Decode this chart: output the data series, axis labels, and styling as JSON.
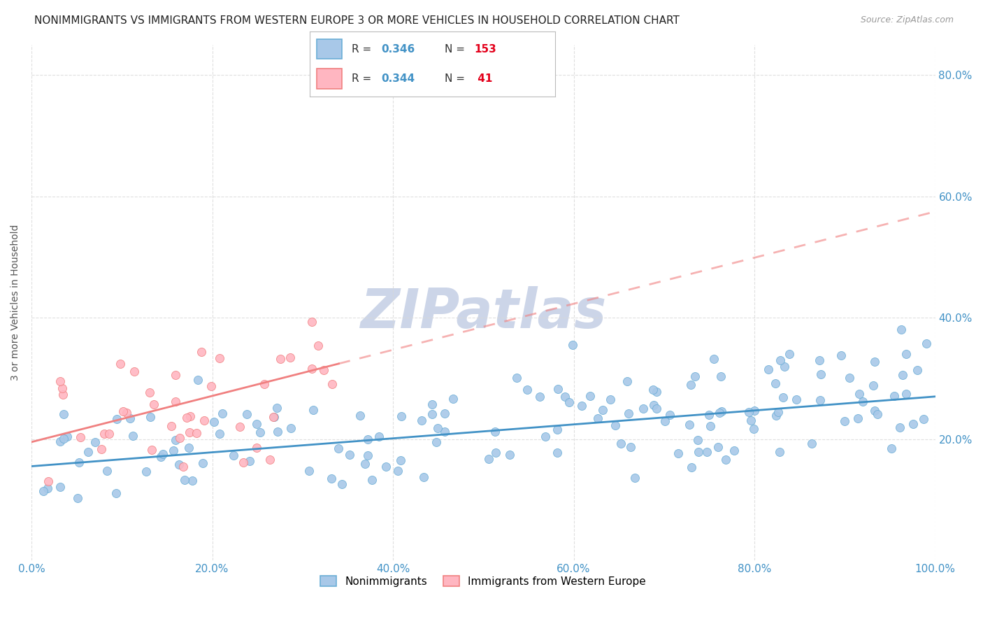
{
  "title": "NONIMMIGRANTS VS IMMIGRANTS FROM WESTERN EUROPE 3 OR MORE VEHICLES IN HOUSEHOLD CORRELATION CHART",
  "source": "Source: ZipAtlas.com",
  "ylabel": "3 or more Vehicles in Household",
  "background_color": "#ffffff",
  "watermark": "ZIPatlas",
  "series": [
    {
      "name": "Nonimmigrants",
      "R": 0.346,
      "N": 153,
      "dot_color": "#a8c8e8",
      "edge_color": "#6baed6",
      "line_color": "#4292c6",
      "intercept": 0.155,
      "slope": 0.115
    },
    {
      "name": "Immigrants from Western Europe",
      "R": 0.344,
      "N": 41,
      "dot_color": "#ffb6c1",
      "edge_color": "#f08080",
      "line_color": "#f08080",
      "intercept": 0.195,
      "slope": 0.38
    }
  ],
  "xlim": [
    0.0,
    1.0
  ],
  "ylim": [
    0.0,
    0.85
  ],
  "xticks": [
    0.0,
    0.2,
    0.4,
    0.6,
    0.8,
    1.0
  ],
  "yticks": [
    0.2,
    0.4,
    0.6,
    0.8
  ],
  "xticklabels": [
    "0.0%",
    "20.0%",
    "40.0%",
    "60.0%",
    "80.0%",
    "100.0%"
  ],
  "yticklabels_right": [
    "20.0%",
    "40.0%",
    "60.0%",
    "80.0%"
  ],
  "title_fontsize": 11,
  "tick_fontsize": 11,
  "legend_R_color": "#4292c6",
  "legend_N_color": "#e3001b",
  "grid_color": "#d8d8d8",
  "watermark_color": "#ccd5e8",
  "watermark_fontsize": 56
}
